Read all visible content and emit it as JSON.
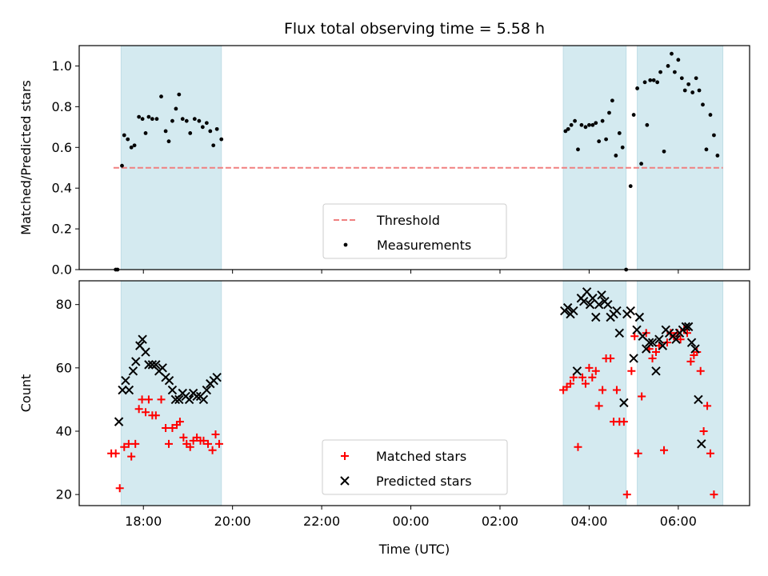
{
  "chart_data": {
    "title": "Flux total observing time = 5.58 h",
    "xlabel": "Time (UTC)",
    "x_tick_labels": [
      "18:00",
      "20:00",
      "22:00",
      "00:00",
      "02:00",
      "04:00",
      "06:00"
    ],
    "x_tick_hours": [
      18,
      20,
      22,
      24,
      26,
      28,
      30
    ],
    "xlim_hours": [
      16.56,
      31.6
    ],
    "observing_windows_hours": [
      [
        17.5,
        19.75
      ],
      [
        27.42,
        28.83
      ],
      [
        29.08,
        31.0
      ]
    ],
    "window_color": "#d4eaf0",
    "panels": [
      {
        "id": "ratio",
        "type": "scatter",
        "ylabel": "Matched/Predicted stars",
        "ylim": [
          0,
          1.1
        ],
        "yticks": [
          0.0,
          0.2,
          0.4,
          0.6,
          0.8,
          1.0
        ],
        "ytick_labels": [
          "0.0",
          "0.2",
          "0.4",
          "0.6",
          "0.8",
          "1.0"
        ],
        "legend_position": "lower-center",
        "threshold": {
          "name": "Threshold",
          "value": 0.5,
          "x_range_hours": [
            17.33,
            31.0
          ],
          "color": "#f08080"
        },
        "series": [
          {
            "name": "Measurements",
            "marker": "dot",
            "color": "#000000",
            "points": [
              [
                17.38,
                0.0
              ],
              [
                17.42,
                0.0
              ],
              [
                17.52,
                0.51
              ],
              [
                17.57,
                0.66
              ],
              [
                17.65,
                0.64
              ],
              [
                17.73,
                0.6
              ],
              [
                17.8,
                0.61
              ],
              [
                17.9,
                0.75
              ],
              [
                17.98,
                0.74
              ],
              [
                18.05,
                0.67
              ],
              [
                18.12,
                0.75
              ],
              [
                18.2,
                0.74
              ],
              [
                18.3,
                0.74
              ],
              [
                18.4,
                0.85
              ],
              [
                18.5,
                0.68
              ],
              [
                18.57,
                0.63
              ],
              [
                18.65,
                0.73
              ],
              [
                18.73,
                0.79
              ],
              [
                18.8,
                0.86
              ],
              [
                18.88,
                0.74
              ],
              [
                18.97,
                0.73
              ],
              [
                19.05,
                0.67
              ],
              [
                19.15,
                0.74
              ],
              [
                19.25,
                0.73
              ],
              [
                19.33,
                0.7
              ],
              [
                19.42,
                0.72
              ],
              [
                19.5,
                0.68
              ],
              [
                19.57,
                0.61
              ],
              [
                19.65,
                0.69
              ],
              [
                19.75,
                0.64
              ],
              [
                27.47,
                0.68
              ],
              [
                27.53,
                0.69
              ],
              [
                27.6,
                0.71
              ],
              [
                27.68,
                0.73
              ],
              [
                27.75,
                0.59
              ],
              [
                27.83,
                0.71
              ],
              [
                27.92,
                0.7
              ],
              [
                28.0,
                0.71
              ],
              [
                28.08,
                0.71
              ],
              [
                28.15,
                0.72
              ],
              [
                28.22,
                0.63
              ],
              [
                28.3,
                0.73
              ],
              [
                28.38,
                0.64
              ],
              [
                28.45,
                0.77
              ],
              [
                28.52,
                0.83
              ],
              [
                28.6,
                0.56
              ],
              [
                28.68,
                0.67
              ],
              [
                28.75,
                0.6
              ],
              [
                28.83,
                0.0
              ],
              [
                28.93,
                0.41
              ],
              [
                29.0,
                0.76
              ],
              [
                29.08,
                0.89
              ],
              [
                29.17,
                0.52
              ],
              [
                29.25,
                0.92
              ],
              [
                29.3,
                0.71
              ],
              [
                29.37,
                0.93
              ],
              [
                29.45,
                0.93
              ],
              [
                29.53,
                0.92
              ],
              [
                29.6,
                0.97
              ],
              [
                29.68,
                0.58
              ],
              [
                29.77,
                1.0
              ],
              [
                29.85,
                1.06
              ],
              [
                29.92,
                0.97
              ],
              [
                30.0,
                1.03
              ],
              [
                30.08,
                0.94
              ],
              [
                30.15,
                0.88
              ],
              [
                30.23,
                0.91
              ],
              [
                30.32,
                0.87
              ],
              [
                30.4,
                0.94
              ],
              [
                30.47,
                0.88
              ],
              [
                30.55,
                0.81
              ],
              [
                30.63,
                0.59
              ],
              [
                30.72,
                0.76
              ],
              [
                30.8,
                0.66
              ],
              [
                30.88,
                0.56
              ]
            ]
          }
        ]
      },
      {
        "id": "counts",
        "type": "scatter",
        "ylabel": "Count",
        "ylim": [
          16.5,
          87.5
        ],
        "yticks": [
          20,
          40,
          60,
          80
        ],
        "ytick_labels": [
          "20",
          "40",
          "60",
          "80"
        ],
        "legend_position": "lower-center",
        "series": [
          {
            "name": "Matched stars",
            "marker": "plus",
            "color": "#ff0000",
            "points": [
              [
                17.28,
                33
              ],
              [
                17.38,
                33
              ],
              [
                17.47,
                22
              ],
              [
                17.57,
                35
              ],
              [
                17.67,
                36
              ],
              [
                17.73,
                32
              ],
              [
                17.82,
                36
              ],
              [
                17.9,
                47
              ],
              [
                17.97,
                50
              ],
              [
                18.05,
                46
              ],
              [
                18.12,
                50
              ],
              [
                18.2,
                45
              ],
              [
                18.28,
                45
              ],
              [
                18.4,
                50
              ],
              [
                18.5,
                41
              ],
              [
                18.57,
                36
              ],
              [
                18.65,
                41
              ],
              [
                18.75,
                42
              ],
              [
                18.82,
                43
              ],
              [
                18.9,
                38
              ],
              [
                18.97,
                36
              ],
              [
                19.05,
                35
              ],
              [
                19.12,
                37
              ],
              [
                19.2,
                38
              ],
              [
                19.28,
                37
              ],
              [
                19.35,
                37
              ],
              [
                19.45,
                36
              ],
              [
                19.55,
                34
              ],
              [
                19.62,
                39
              ],
              [
                19.7,
                36
              ],
              [
                27.42,
                53
              ],
              [
                27.5,
                54
              ],
              [
                27.58,
                55
              ],
              [
                27.65,
                57
              ],
              [
                27.75,
                35
              ],
              [
                27.85,
                57
              ],
              [
                27.92,
                55
              ],
              [
                28.0,
                60
              ],
              [
                28.07,
                57
              ],
              [
                28.15,
                59
              ],
              [
                28.22,
                48
              ],
              [
                28.3,
                53
              ],
              [
                28.38,
                63
              ],
              [
                28.48,
                63
              ],
              [
                28.55,
                43
              ],
              [
                28.62,
                53
              ],
              [
                28.68,
                43
              ],
              [
                28.78,
                43
              ],
              [
                28.85,
                20
              ],
              [
                28.95,
                59
              ],
              [
                29.02,
                70
              ],
              [
                29.1,
                33
              ],
              [
                29.18,
                51
              ],
              [
                29.28,
                71
              ],
              [
                29.35,
                66
              ],
              [
                29.42,
                63
              ],
              [
                29.5,
                65
              ],
              [
                29.57,
                67
              ],
              [
                29.68,
                34
              ],
              [
                29.75,
                68
              ],
              [
                29.83,
                71
              ],
              [
                29.9,
                70
              ],
              [
                29.98,
                71
              ],
              [
                30.05,
                69
              ],
              [
                30.13,
                72
              ],
              [
                30.2,
                71
              ],
              [
                30.28,
                62
              ],
              [
                30.35,
                64
              ],
              [
                30.42,
                65
              ],
              [
                30.5,
                59
              ],
              [
                30.57,
                40
              ],
              [
                30.65,
                48
              ],
              [
                30.72,
                33
              ],
              [
                30.8,
                20
              ]
            ]
          },
          {
            "name": "Predicted stars",
            "marker": "x",
            "color": "#000000",
            "points": [
              [
                17.45,
                43
              ],
              [
                17.53,
                53
              ],
              [
                17.6,
                56
              ],
              [
                17.68,
                53
              ],
              [
                17.77,
                59
              ],
              [
                17.83,
                62
              ],
              [
                17.92,
                67
              ],
              [
                17.98,
                69
              ],
              [
                18.05,
                65
              ],
              [
                18.12,
                61
              ],
              [
                18.2,
                61
              ],
              [
                18.28,
                61
              ],
              [
                18.35,
                59
              ],
              [
                18.43,
                60
              ],
              [
                18.5,
                57
              ],
              [
                18.58,
                56
              ],
              [
                18.65,
                53
              ],
              [
                18.72,
                50
              ],
              [
                18.8,
                50
              ],
              [
                18.88,
                52
              ],
              [
                18.95,
                51
              ],
              [
                19.03,
                50
              ],
              [
                19.12,
                52
              ],
              [
                19.2,
                51
              ],
              [
                19.28,
                51
              ],
              [
                19.35,
                50
              ],
              [
                19.42,
                53
              ],
              [
                19.5,
                55
              ],
              [
                19.58,
                56
              ],
              [
                19.65,
                57
              ],
              [
                27.45,
                78
              ],
              [
                27.52,
                79
              ],
              [
                27.58,
                77
              ],
              [
                27.65,
                78
              ],
              [
                27.73,
                59
              ],
              [
                27.82,
                82
              ],
              [
                27.88,
                81
              ],
              [
                27.95,
                84
              ],
              [
                28.02,
                80
              ],
              [
                28.08,
                82
              ],
              [
                28.15,
                76
              ],
              [
                28.22,
                80
              ],
              [
                28.28,
                83
              ],
              [
                28.35,
                81
              ],
              [
                28.42,
                80
              ],
              [
                28.48,
                76
              ],
              [
                28.55,
                77
              ],
              [
                28.62,
                78
              ],
              [
                28.68,
                71
              ],
              [
                28.78,
                49
              ],
              [
                28.85,
                77
              ],
              [
                28.93,
                78
              ],
              [
                29.0,
                63
              ],
              [
                29.07,
                72
              ],
              [
                29.13,
                76
              ],
              [
                29.2,
                70
              ],
              [
                29.28,
                66
              ],
              [
                29.35,
                68
              ],
              [
                29.42,
                68
              ],
              [
                29.5,
                59
              ],
              [
                29.57,
                69
              ],
              [
                29.65,
                67
              ],
              [
                29.72,
                72
              ],
              [
                29.8,
                71
              ],
              [
                29.88,
                70
              ],
              [
                29.95,
                69
              ],
              [
                30.03,
                71
              ],
              [
                30.1,
                72
              ],
              [
                30.17,
                73
              ],
              [
                30.23,
                73
              ],
              [
                30.3,
                68
              ],
              [
                30.38,
                66
              ],
              [
                30.45,
                50
              ],
              [
                30.52,
                36
              ]
            ]
          }
        ]
      }
    ]
  }
}
